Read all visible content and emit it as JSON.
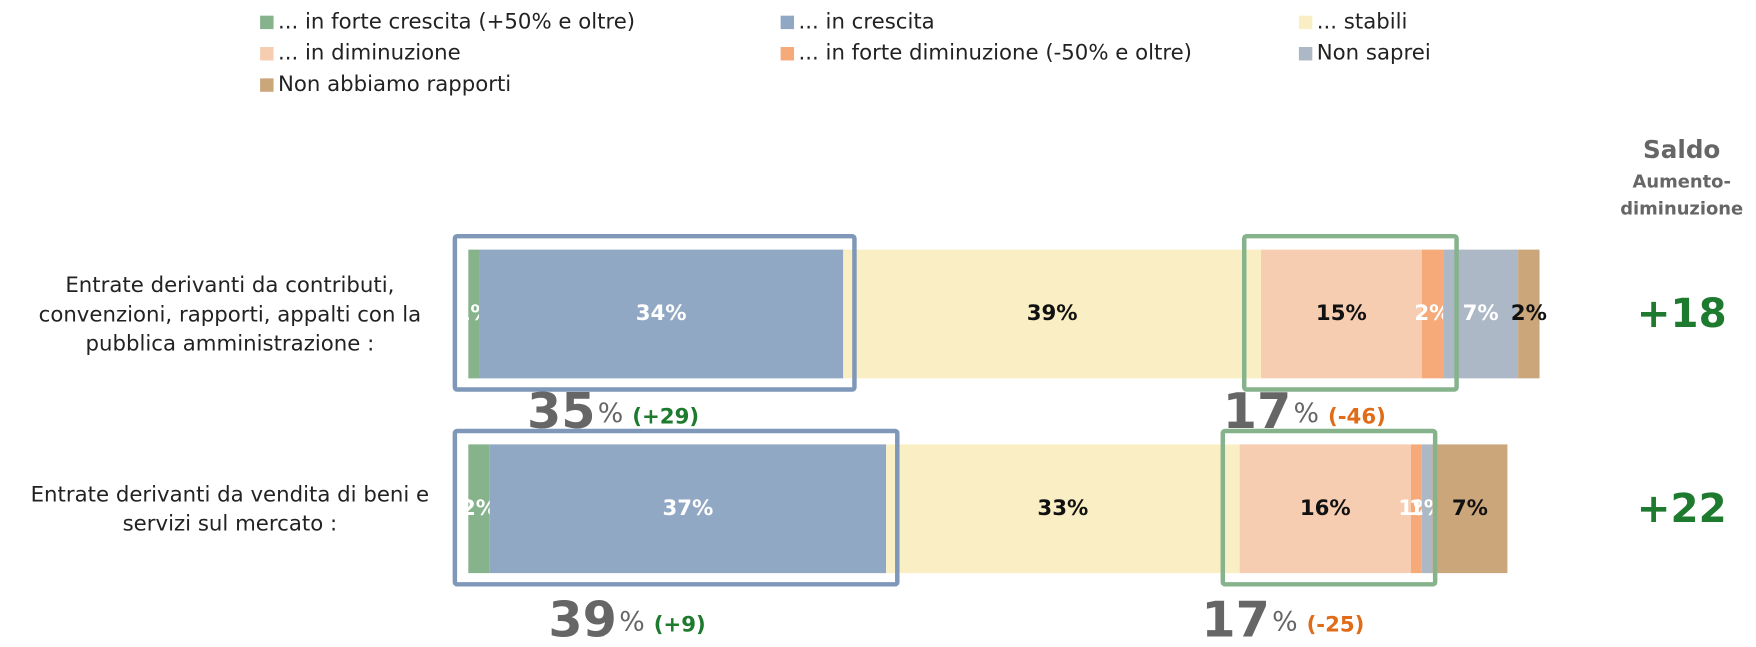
{
  "chart_data": {
    "type": "stacked-bar-horizontal",
    "categories": [
      "Entrate derivanti da contributi, convenzioni, rapporti, appalti con la pubblica amministrazione :",
      "Entrate derivanti da vendita di beni e servizi sul mercato :"
    ],
    "xlim": [
      0,
      100
    ],
    "legend": "top",
    "series": [
      {
        "name": "... in forte crescita (+50% e oltre)",
        "color": "#86b38b",
        "label_color": "#ffffff",
        "values": [
          1,
          2
        ],
        "value_labels": [
          "1%",
          "2%"
        ]
      },
      {
        "name": "... in crescita",
        "color": "#91a8c4",
        "label_color": "#ffffff",
        "values": [
          34,
          37
        ],
        "value_labels": [
          "34%",
          "37%"
        ]
      },
      {
        "name": "... stabili",
        "color": "#faefc4",
        "label_color": "#111111",
        "values": [
          39,
          33
        ],
        "value_labels": [
          "39%",
          "33%"
        ]
      },
      {
        "name": "... in diminuzione",
        "color": "#f7cdb1",
        "label_color": "#111111",
        "values": [
          15,
          16
        ],
        "value_labels": [
          "15%",
          "16%"
        ]
      },
      {
        "name": "... in forte diminuzione (-50% e oltre)",
        "color": "#f6aa7a",
        "label_color": "#ffffff",
        "values": [
          2,
          1
        ],
        "value_labels": [
          "2%",
          "1%"
        ]
      },
      {
        "name": "Non saprei",
        "color": "#adb8c6",
        "label_color": "#ffffff",
        "values": [
          7,
          1
        ],
        "value_labels": [
          "7%",
          "1%"
        ]
      },
      {
        "name": "Non abbiamo rapporti",
        "color": "#caa67a",
        "label_color": "#111111",
        "values": [
          2,
          7
        ],
        "value_labels": [
          "2%",
          "7%"
        ]
      }
    ],
    "groups": [
      [
        {
          "total": "35",
          "unit": "%",
          "delta": "(+29)",
          "delta_color": "#1e7a2e"
        },
        {
          "total": "17",
          "unit": "%",
          "delta": "(-46)",
          "delta_color": "#e06c1a"
        }
      ],
      [
        {
          "total": "39",
          "unit": "%",
          "delta": "(+9)",
          "delta_color": "#1e7a2e"
        },
        {
          "total": "17",
          "unit": "%",
          "delta": "(-25)",
          "delta_color": "#e06c1a"
        }
      ]
    ],
    "saldo_title": "Saldo",
    "saldo_subtitle": [
      "Aumento-",
      "diminuzione"
    ],
    "saldo": [
      "+18",
      "+22"
    ]
  }
}
